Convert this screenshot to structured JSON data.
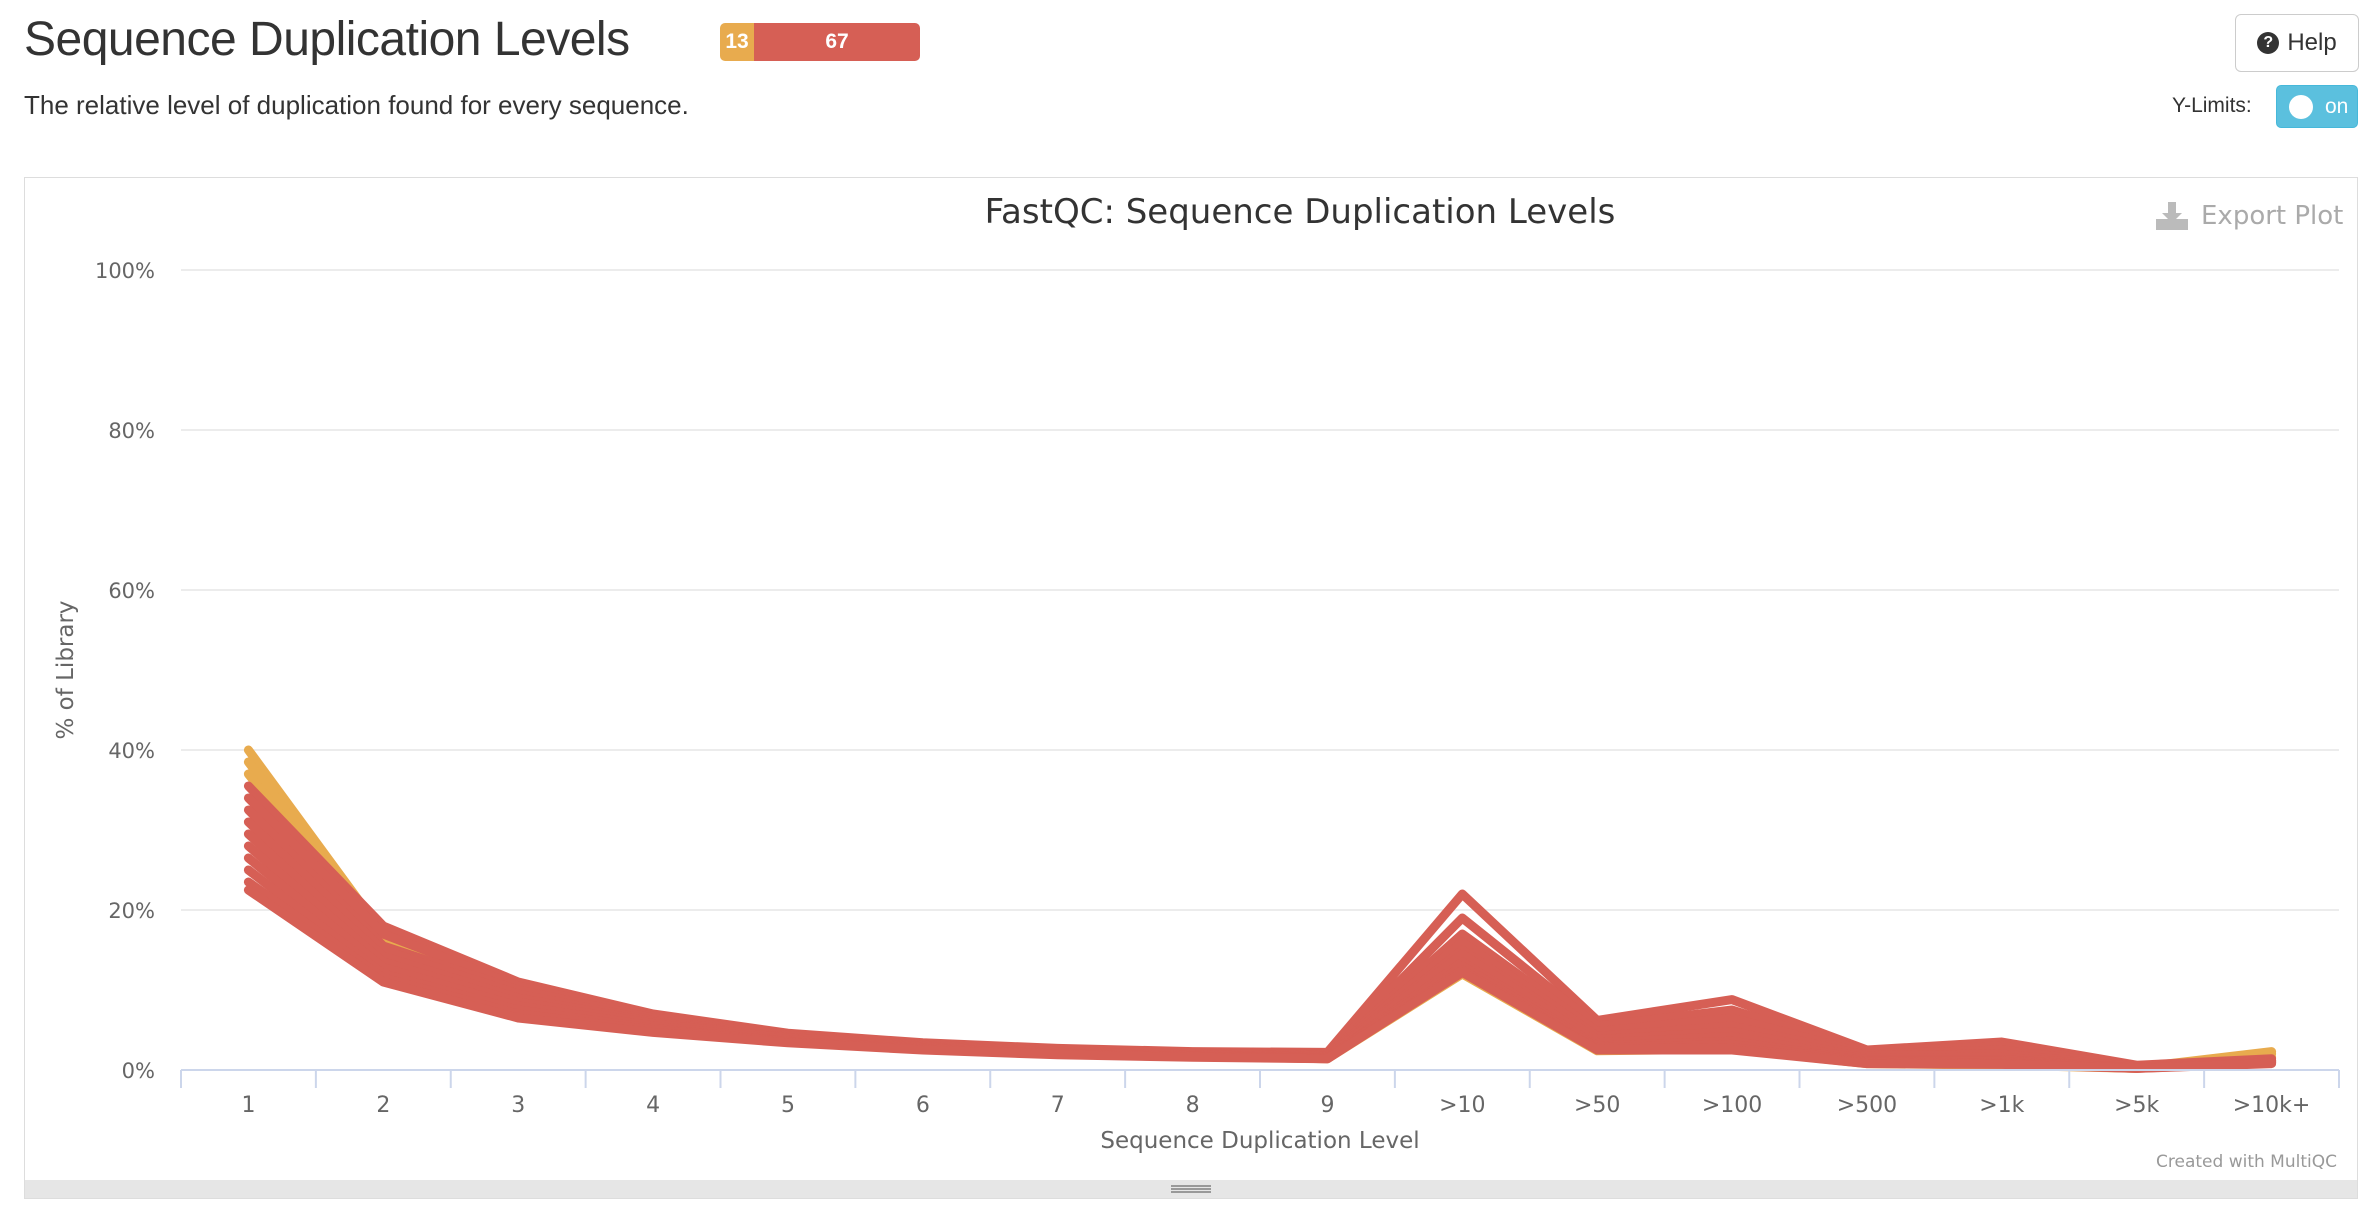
{
  "header": {
    "title": "Sequence Duplication Levels",
    "subtitle": "The relative level of duplication found for every sequence.",
    "status": {
      "warn": "13",
      "fail": "67"
    },
    "help_label": "Help",
    "ylimits_label": "Y-Limits:",
    "ylimits_state": "on"
  },
  "plot": {
    "export_label": "Export Plot",
    "credits": "Created with MultiQC"
  },
  "colors": {
    "warn": "#e8ab4e",
    "fail": "#d65f55",
    "info": "#5bc0de"
  },
  "chart_data": {
    "type": "line",
    "title": "FastQC: Sequence Duplication Levels",
    "xlabel": "Sequence Duplication Level",
    "ylabel": "% of Library",
    "ylim": [
      0,
      100
    ],
    "yticks": [
      "0%",
      "20%",
      "40%",
      "60%",
      "80%",
      "100%"
    ],
    "categories": [
      "1",
      "2",
      "3",
      "4",
      "5",
      "6",
      "7",
      "8",
      "9",
      ">10",
      ">50",
      ">100",
      ">500",
      ">1k",
      ">5k",
      ">10k+"
    ],
    "grid": true,
    "series": [
      {
        "status": "warn",
        "values": [
          40.0,
          17.0,
          9.5,
          6.0,
          4.0,
          3.0,
          2.3,
          2.0,
          1.6,
          14.0,
          3.5,
          4.2,
          1.2,
          0.8,
          0.3,
          2.3
        ]
      },
      {
        "status": "warn",
        "values": [
          38.5,
          16.5,
          9.2,
          5.9,
          3.9,
          2.9,
          2.2,
          1.9,
          1.5,
          13.2,
          3.0,
          3.5,
          1.0,
          0.7,
          0.3,
          2.0
        ]
      },
      {
        "status": "warn",
        "values": [
          37.0,
          16.0,
          9.0,
          5.7,
          3.8,
          2.8,
          2.1,
          1.8,
          1.4,
          12.0,
          2.4,
          2.6,
          0.8,
          0.6,
          0.2,
          1.6
        ]
      },
      {
        "status": "fail",
        "values": [
          35.5,
          18.0,
          11.0,
          7.0,
          4.6,
          3.4,
          2.7,
          2.3,
          2.2,
          22.0,
          6.2,
          8.8,
          2.5,
          3.5,
          0.6,
          1.4
        ]
      },
      {
        "status": "fail",
        "values": [
          34.0,
          17.0,
          10.5,
          6.7,
          4.5,
          3.3,
          2.6,
          2.2,
          2.0,
          19.0,
          5.5,
          7.5,
          2.3,
          3.0,
          0.5,
          1.2
        ]
      },
      {
        "status": "fail",
        "values": [
          32.5,
          15.5,
          10.0,
          6.5,
          4.4,
          3.2,
          2.5,
          2.1,
          1.9,
          17.0,
          4.8,
          6.5,
          2.0,
          2.5,
          0.5,
          1.2
        ]
      },
      {
        "status": "fail",
        "values": [
          31.0,
          15.0,
          9.5,
          6.2,
          4.3,
          3.1,
          2.4,
          2.1,
          1.8,
          16.0,
          4.2,
          5.5,
          1.8,
          2.0,
          0.4,
          1.1
        ]
      },
      {
        "status": "fail",
        "values": [
          29.5,
          14.2,
          9.0,
          6.0,
          4.1,
          3.0,
          2.3,
          2.0,
          1.7,
          15.0,
          3.8,
          4.8,
          1.5,
          1.6,
          0.4,
          1.1
        ]
      },
      {
        "status": "fail",
        "values": [
          28.0,
          13.5,
          8.5,
          5.8,
          4.0,
          2.9,
          2.2,
          1.9,
          1.6,
          14.5,
          3.4,
          4.2,
          1.3,
          1.3,
          0.3,
          1.0
        ]
      },
      {
        "status": "fail",
        "values": [
          26.5,
          12.8,
          8.0,
          5.5,
          3.8,
          2.8,
          2.1,
          1.8,
          1.5,
          13.5,
          3.0,
          3.6,
          1.1,
          1.1,
          0.3,
          1.0
        ]
      },
      {
        "status": "fail",
        "values": [
          25.0,
          12.0,
          7.5,
          5.2,
          3.6,
          2.7,
          2.0,
          1.7,
          1.5,
          13.0,
          2.8,
          3.2,
          1.0,
          0.9,
          0.3,
          0.9
        ]
      },
      {
        "status": "fail",
        "values": [
          23.5,
          11.5,
          7.0,
          5.0,
          3.5,
          2.6,
          2.0,
          1.7,
          1.4,
          12.5,
          2.6,
          2.8,
          0.9,
          0.8,
          0.2,
          0.9
        ]
      },
      {
        "status": "fail",
        "values": [
          22.5,
          11.0,
          6.5,
          4.7,
          3.4,
          2.5,
          1.9,
          1.6,
          1.4,
          12.2,
          2.5,
          2.5,
          0.8,
          0.7,
          0.2,
          0.8
        ]
      }
    ]
  }
}
